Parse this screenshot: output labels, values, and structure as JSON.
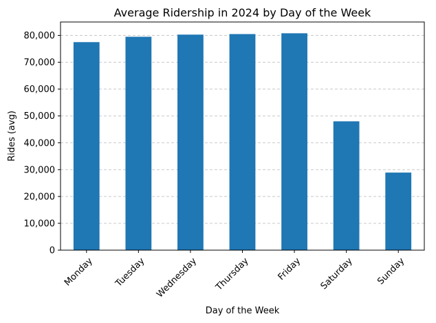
{
  "chart_data": {
    "type": "bar",
    "title": "Average Ridership in 2024 by Day of the Week",
    "xlabel": "Day of the Week",
    "ylabel": "Rides (avg)",
    "categories": [
      "Monday",
      "Tuesday",
      "Wednesday",
      "Thursday",
      "Friday",
      "Saturday",
      "Sunday"
    ],
    "values": [
      77500,
      79500,
      80300,
      80500,
      80800,
      48000,
      28900
    ],
    "ylim": [
      0,
      85000
    ],
    "yticks": [
      0,
      10000,
      20000,
      30000,
      40000,
      50000,
      60000,
      70000,
      80000
    ],
    "ytick_labels": [
      "0",
      "10,000",
      "20,000",
      "30,000",
      "40,000",
      "50,000",
      "60,000",
      "70,000",
      "80,000"
    ],
    "grid": "y-dashed",
    "bar_color": "#1f77b4",
    "grid_color": "#c8c8c8"
  }
}
